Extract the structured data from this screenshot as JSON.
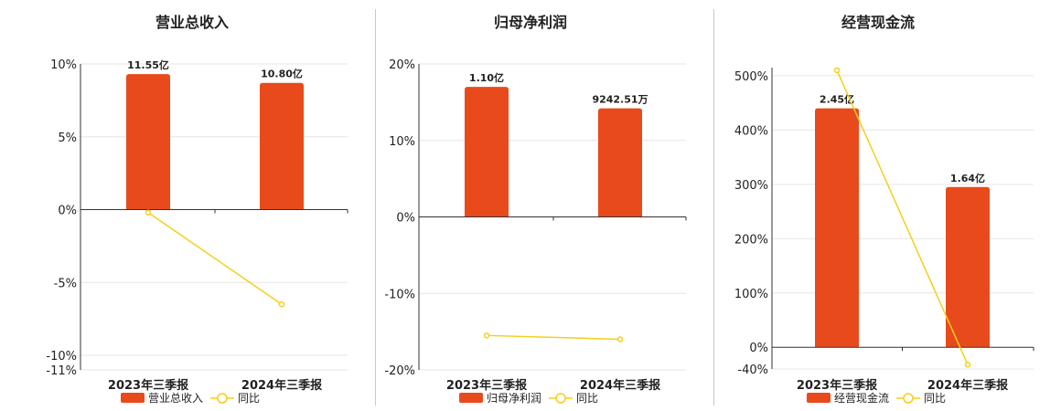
{
  "chart_data": [
    {
      "type": "bar",
      "title": "营业总收入",
      "categories": [
        "2023年三季报",
        "2024年三季报"
      ],
      "series": [
        {
          "name": "营业总收入",
          "kind": "bar",
          "values": [
            9.3,
            8.7
          ],
          "labels": [
            "11.55亿",
            "10.80亿"
          ]
        },
        {
          "name": "同比",
          "kind": "line",
          "values": [
            -0.2,
            -6.5
          ]
        }
      ],
      "yticks": [
        "10%",
        "5%",
        "0%",
        "-5%",
        "-10%",
        "-11%"
      ],
      "ytick_values": [
        10,
        5,
        0,
        -5,
        -10,
        -11
      ],
      "ylim": [
        -11,
        10
      ],
      "colors": {
        "bar": "#e84a1c",
        "line": "#f5cf1c"
      }
    },
    {
      "type": "bar",
      "title": "归母净利润",
      "categories": [
        "2023年三季报",
        "2024年三季报"
      ],
      "series": [
        {
          "name": "归母净利润",
          "kind": "bar",
          "values": [
            17.0,
            14.2
          ],
          "labels": [
            "1.10亿",
            "9242.51万"
          ]
        },
        {
          "name": "同比",
          "kind": "line",
          "values": [
            -15.5,
            -16.0
          ]
        }
      ],
      "yticks": [
        "20%",
        "10%",
        "0%",
        "-10%",
        "-20%"
      ],
      "ytick_values": [
        20,
        10,
        0,
        -10,
        -20
      ],
      "ylim": [
        -20,
        20
      ],
      "colors": {
        "bar": "#e84a1c",
        "line": "#f5cf1c"
      }
    },
    {
      "type": "bar",
      "title": "经营现金流",
      "categories": [
        "2023年三季报",
        "2024年三季报"
      ],
      "series": [
        {
          "name": "经营现金流",
          "kind": "bar",
          "values": [
            440,
            295
          ],
          "labels": [
            "2.45亿",
            "1.64亿"
          ]
        },
        {
          "name": "同比",
          "kind": "line",
          "values": [
            510,
            -32
          ]
        }
      ],
      "yticks": [
        "500%",
        "400%",
        "300%",
        "200%",
        "100%",
        "0%",
        "-40%"
      ],
      "ytick_values": [
        500,
        400,
        300,
        200,
        100,
        0,
        -40
      ],
      "ylim": [
        -40,
        515
      ],
      "colors": {
        "bar": "#e84a1c",
        "line": "#f5cf1c"
      }
    }
  ]
}
